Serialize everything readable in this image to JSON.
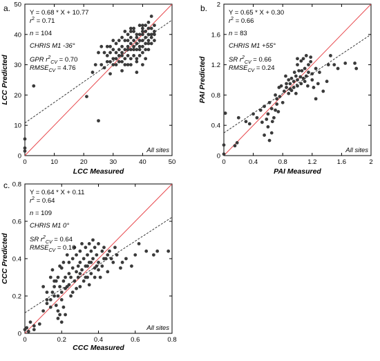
{
  "chart_data": [
    {
      "type": "scatter",
      "panel": "a.",
      "xlabel": "LCC Measured",
      "ylabel": "LCC Predicted",
      "xlim": [
        0,
        50
      ],
      "ylim": [
        0,
        50
      ],
      "xticks": [
        "0",
        "10",
        "20",
        "30",
        "40",
        "50"
      ],
      "yticks": [
        "0",
        "10",
        "20",
        "30",
        "40",
        "50"
      ],
      "regression": {
        "slope": 0.68,
        "intercept": 10.77
      },
      "annotations": {
        "equation": "Y = 0.68 * X + 10.77",
        "r2_prefix": "r",
        "r2_sup": "2",
        "r2_value": " = 0.71",
        "n": "= 104",
        "sensor": "CHRIS M1 -36°",
        "cv_method": "GPR r",
        "cv_sup": "2",
        "cv_sub": "CV",
        "cv_value": " = 0.70",
        "rmse_prefix": "RMSE",
        "rmse_sub": "CV",
        "rmse_value": " = 4.76"
      },
      "site_label": "All sites",
      "points": [
        [
          0,
          1.5
        ],
        [
          0,
          2.5
        ],
        [
          0,
          5.5
        ],
        [
          3,
          23
        ],
        [
          21,
          19.5
        ],
        [
          25,
          11.5
        ],
        [
          23,
          27.5
        ],
        [
          24,
          30
        ],
        [
          25,
          34
        ],
        [
          26,
          30
        ],
        [
          27,
          29
        ],
        [
          28,
          31
        ],
        [
          28,
          33
        ],
        [
          29,
          27
        ],
        [
          29,
          31
        ],
        [
          30,
          35
        ],
        [
          30,
          30
        ],
        [
          26,
          36
        ],
        [
          28,
          36
        ],
        [
          29,
          36
        ],
        [
          30,
          32
        ],
        [
          31,
          34
        ],
        [
          31,
          30
        ],
        [
          31,
          37
        ],
        [
          32,
          33
        ],
        [
          32,
          31
        ],
        [
          32,
          35
        ],
        [
          33,
          28
        ],
        [
          33,
          31
        ],
        [
          33,
          36
        ],
        [
          33,
          33
        ],
        [
          34,
          30
        ],
        [
          34,
          32
        ],
        [
          34,
          35
        ],
        [
          34,
          38
        ],
        [
          35,
          30
        ],
        [
          35,
          33
        ],
        [
          35,
          35
        ],
        [
          35,
          36
        ],
        [
          35,
          40
        ],
        [
          36,
          35
        ],
        [
          36,
          30
        ],
        [
          36,
          32
        ],
        [
          36,
          37
        ],
        [
          36,
          39
        ],
        [
          37,
          33
        ],
        [
          37,
          35
        ],
        [
          37,
          41
        ],
        [
          37,
          36
        ],
        [
          38,
          27.5
        ],
        [
          38,
          32
        ],
        [
          38,
          35
        ],
        [
          38,
          37
        ],
        [
          38,
          39
        ],
        [
          38,
          40
        ],
        [
          39,
          33
        ],
        [
          39,
          36
        ],
        [
          39,
          38
        ],
        [
          39,
          40
        ],
        [
          39,
          43
        ],
        [
          40,
          34
        ],
        [
          40,
          36
        ],
        [
          40,
          38
        ],
        [
          40,
          40
        ],
        [
          40,
          41
        ],
        [
          40,
          42
        ],
        [
          40,
          43
        ],
        [
          41,
          35
        ],
        [
          41,
          37
        ],
        [
          41,
          39
        ],
        [
          41,
          41
        ],
        [
          41,
          43
        ],
        [
          42,
          35
        ],
        [
          42,
          38
        ],
        [
          42,
          40
        ],
        [
          42,
          42
        ],
        [
          42,
          44
        ],
        [
          43,
          37
        ],
        [
          43,
          39
        ],
        [
          43,
          40
        ],
        [
          43,
          42
        ],
        [
          43,
          46
        ],
        [
          44,
          38
        ],
        [
          44,
          40
        ],
        [
          44,
          41
        ],
        [
          44,
          43
        ],
        [
          36,
          41
        ],
        [
          34,
          41
        ],
        [
          33,
          39
        ],
        [
          37,
          42
        ],
        [
          39,
          35
        ],
        [
          38,
          31
        ],
        [
          40,
          30
        ],
        [
          32,
          38
        ],
        [
          35,
          38
        ],
        [
          36,
          42
        ],
        [
          42,
          37
        ],
        [
          41,
          32
        ],
        [
          30,
          38
        ],
        [
          27,
          34
        ],
        [
          29,
          34
        ],
        [
          31,
          32
        ],
        [
          33,
          34
        ],
        [
          37,
          38
        ]
      ]
    },
    {
      "type": "scatter",
      "panel": "b.",
      "xlabel": "PAI Measured",
      "ylabel": "PAI Predicted",
      "xlim": [
        0,
        2
      ],
      "ylim": [
        0,
        2
      ],
      "xticks": [
        "0",
        "0.4",
        "0.8",
        "1.2",
        "1.6",
        "2"
      ],
      "yticks": [
        "0",
        "0.4",
        "0.8",
        "1.2",
        "1.6",
        "2"
      ],
      "regression": {
        "slope": 0.65,
        "intercept": 0.3
      },
      "annotations": {
        "equation": "Y = 0.65 * X + 0.30",
        "r2_prefix": "r",
        "r2_sup": "2",
        "r2_value": " = 0.66",
        "n": "= 83",
        "sensor": "CHRIS M1 +55°",
        "cv_method": "SR r",
        "cv_sup": "2",
        "cv_sub": "CV",
        "cv_value": " = 0.66",
        "rmse_prefix": "RMSE",
        "rmse_sub": "CV",
        "rmse_value": " = 0.24"
      },
      "site_label": "All sites",
      "points": [
        [
          0,
          0.02
        ],
        [
          0,
          0.14
        ],
        [
          0.02,
          0.56
        ],
        [
          0.15,
          0.13
        ],
        [
          0.18,
          0.17
        ],
        [
          0.2,
          0.5
        ],
        [
          0.3,
          0.45
        ],
        [
          0.35,
          0.42
        ],
        [
          0.4,
          0.55
        ],
        [
          0.45,
          0.5
        ],
        [
          0.5,
          0.6
        ],
        [
          0.55,
          0.65
        ],
        [
          0.55,
          0.27
        ],
        [
          0.58,
          0.48
        ],
        [
          0.6,
          0.38
        ],
        [
          0.6,
          0.55
        ],
        [
          0.62,
          0.7
        ],
        [
          0.65,
          0.3
        ],
        [
          0.65,
          0.62
        ],
        [
          0.68,
          0.5
        ],
        [
          0.7,
          0.8
        ],
        [
          0.72,
          0.75
        ],
        [
          0.72,
          0.68
        ],
        [
          0.75,
          0.9
        ],
        [
          0.78,
          0.92
        ],
        [
          0.8,
          0.7
        ],
        [
          0.82,
          0.85
        ],
        [
          0.85,
          0.95
        ],
        [
          0.85,
          0.9
        ],
        [
          0.88,
          1.0
        ],
        [
          0.9,
          0.88
        ],
        [
          0.9,
          0.95
        ],
        [
          0.92,
          1.02
        ],
        [
          0.95,
          0.98
        ],
        [
          0.95,
          0.9
        ],
        [
          0.98,
          1.05
        ],
        [
          1.0,
          1.2
        ],
        [
          1.0,
          0.92
        ],
        [
          1.0,
          1.0
        ],
        [
          1.02,
          1.12
        ],
        [
          1.05,
          1.25
        ],
        [
          1.05,
          0.95
        ],
        [
          1.08,
          1.02
        ],
        [
          1.08,
          1.28
        ],
        [
          1.1,
          1.15
        ],
        [
          1.1,
          0.98
        ],
        [
          1.12,
          1.32
        ],
        [
          1.12,
          1.05
        ],
        [
          1.15,
          1.2
        ],
        [
          1.15,
          1.1
        ],
        [
          1.18,
          1.3
        ],
        [
          1.2,
          1.0
        ],
        [
          1.2,
          1.08
        ],
        [
          1.22,
          0.9
        ],
        [
          1.25,
          1.15
        ],
        [
          1.25,
          0.75
        ],
        [
          1.28,
          0.95
        ],
        [
          1.3,
          1.1
        ],
        [
          1.35,
          0.85
        ],
        [
          1.4,
          0.98
        ],
        [
          1.42,
          1.2
        ],
        [
          1.45,
          1.32
        ],
        [
          1.5,
          1.2
        ],
        [
          1.55,
          1.15
        ],
        [
          1.65,
          1.22
        ],
        [
          1.78,
          1.22
        ],
        [
          1.8,
          1.15
        ],
        [
          0.62,
          0.2
        ],
        [
          0.66,
          0.45
        ],
        [
          0.7,
          0.6
        ],
        [
          0.76,
          0.78
        ],
        [
          0.84,
          1.05
        ],
        [
          0.96,
          1.1
        ],
        [
          1.0,
          1.28
        ],
        [
          1.06,
          1.12
        ],
        [
          1.14,
          0.92
        ],
        [
          0.88,
          0.82
        ],
        [
          0.92,
          0.86
        ],
        [
          1.18,
          1.24
        ],
        [
          0.74,
          0.58
        ],
        [
          0.52,
          0.44
        ],
        [
          0.98,
          0.82
        ],
        [
          1.04,
          1.04
        ]
      ]
    },
    {
      "type": "scatter",
      "panel": "c.",
      "xlabel": "CCC Measured",
      "ylabel": "CCC Predicted",
      "xlim": [
        0,
        0.8
      ],
      "ylim": [
        0,
        0.8
      ],
      "xticks": [
        "0",
        "0.2",
        "0.4",
        "0.6",
        "0.8"
      ],
      "yticks": [
        "0",
        "0.2",
        "0.4",
        "0.6",
        "0.8"
      ],
      "regression": {
        "slope": 0.64,
        "intercept": 0.11
      },
      "annotations": {
        "equation": "Y = 0.64 * X + 0.11",
        "r2_prefix": "r",
        "r2_sup": "2",
        "r2_value": " = 0.64",
        "n": "= 109",
        "sensor": "CHRIS M1 0°",
        "cv_method": "SR r",
        "cv_sup": "2",
        "cv_sub": "CV",
        "cv_value": " = 0.64",
        "rmse_prefix": "RMSE",
        "rmse_sub": "CV",
        "rmse_value": " = 0.10"
      },
      "site_label": "All sites",
      "points": [
        [
          0,
          0.02
        ],
        [
          0.01,
          0.03
        ],
        [
          0.02,
          0.01
        ],
        [
          0.03,
          0.06
        ],
        [
          0.05,
          0.04
        ],
        [
          0.05,
          0.02
        ],
        [
          0.08,
          0.05
        ],
        [
          0.1,
          0.12
        ],
        [
          0.12,
          0.18
        ],
        [
          0.12,
          0.16
        ],
        [
          0.14,
          0.18
        ],
        [
          0.15,
          0.22
        ],
        [
          0.16,
          0.25
        ],
        [
          0.16,
          0.2
        ],
        [
          0.17,
          0.15
        ],
        [
          0.17,
          0.28
        ],
        [
          0.18,
          0.12
        ],
        [
          0.18,
          0.2
        ],
        [
          0.18,
          0.3
        ],
        [
          0.19,
          0.25
        ],
        [
          0.19,
          0.1
        ],
        [
          0.2,
          0.22
        ],
        [
          0.2,
          0.18
        ],
        [
          0.2,
          0.35
        ],
        [
          0.21,
          0.28
        ],
        [
          0.21,
          0.14
        ],
        [
          0.22,
          0.3
        ],
        [
          0.22,
          0.24
        ],
        [
          0.23,
          0.25
        ],
        [
          0.24,
          0.32
        ],
        [
          0.24,
          0.38
        ],
        [
          0.25,
          0.3
        ],
        [
          0.25,
          0.2
        ],
        [
          0.26,
          0.35
        ],
        [
          0.26,
          0.4
        ],
        [
          0.27,
          0.28
        ],
        [
          0.28,
          0.33
        ],
        [
          0.28,
          0.42
        ],
        [
          0.29,
          0.3
        ],
        [
          0.3,
          0.38
        ],
        [
          0.3,
          0.25
        ],
        [
          0.3,
          0.44
        ],
        [
          0.31,
          0.34
        ],
        [
          0.32,
          0.28
        ],
        [
          0.32,
          0.4
        ],
        [
          0.33,
          0.36
        ],
        [
          0.33,
          0.46
        ],
        [
          0.34,
          0.3
        ],
        [
          0.34,
          0.42
        ],
        [
          0.35,
          0.38
        ],
        [
          0.35,
          0.48
        ],
        [
          0.36,
          0.32
        ],
        [
          0.36,
          0.44
        ],
        [
          0.37,
          0.4
        ],
        [
          0.37,
          0.5
        ],
        [
          0.38,
          0.35
        ],
        [
          0.38,
          0.46
        ],
        [
          0.39,
          0.42
        ],
        [
          0.4,
          0.38
        ],
        [
          0.4,
          0.48
        ],
        [
          0.41,
          0.3
        ],
        [
          0.42,
          0.44
        ],
        [
          0.42,
          0.36
        ],
        [
          0.43,
          0.46
        ],
        [
          0.44,
          0.4
        ],
        [
          0.45,
          0.33
        ],
        [
          0.45,
          0.42
        ],
        [
          0.46,
          0.44
        ],
        [
          0.48,
          0.38
        ],
        [
          0.5,
          0.42
        ],
        [
          0.52,
          0.35
        ],
        [
          0.55,
          0.4
        ],
        [
          0.58,
          0.36
        ],
        [
          0.62,
          0.48
        ],
        [
          0.7,
          0.42
        ],
        [
          0.72,
          0.44
        ],
        [
          0.78,
          0.44
        ],
        [
          0.1,
          0.25
        ],
        [
          0.12,
          0.22
        ],
        [
          0.14,
          0.3
        ],
        [
          0.15,
          0.34
        ],
        [
          0.16,
          0.28
        ],
        [
          0.19,
          0.36
        ],
        [
          0.21,
          0.38
        ],
        [
          0.23,
          0.42
        ],
        [
          0.27,
          0.46
        ],
        [
          0.29,
          0.36
        ],
        [
          0.31,
          0.48
        ],
        [
          0.33,
          0.3
        ],
        [
          0.35,
          0.26
        ],
        [
          0.38,
          0.3
        ],
        [
          0.4,
          0.34
        ],
        [
          0.18,
          0.08
        ],
        [
          0.2,
          0.06
        ],
        [
          0.22,
          0.1
        ],
        [
          0.14,
          0.14
        ],
        [
          0.24,
          0.26
        ],
        [
          0.26,
          0.22
        ],
        [
          0.28,
          0.24
        ],
        [
          0.3,
          0.32
        ],
        [
          0.34,
          0.36
        ],
        [
          0.36,
          0.38
        ],
        [
          0.39,
          0.36
        ],
        [
          0.43,
          0.4
        ],
        [
          0.47,
          0.4
        ],
        [
          0.49,
          0.46
        ],
        [
          0.53,
          0.38
        ],
        [
          0.6,
          0.42
        ],
        [
          0.66,
          0.44
        ]
      ]
    }
  ]
}
